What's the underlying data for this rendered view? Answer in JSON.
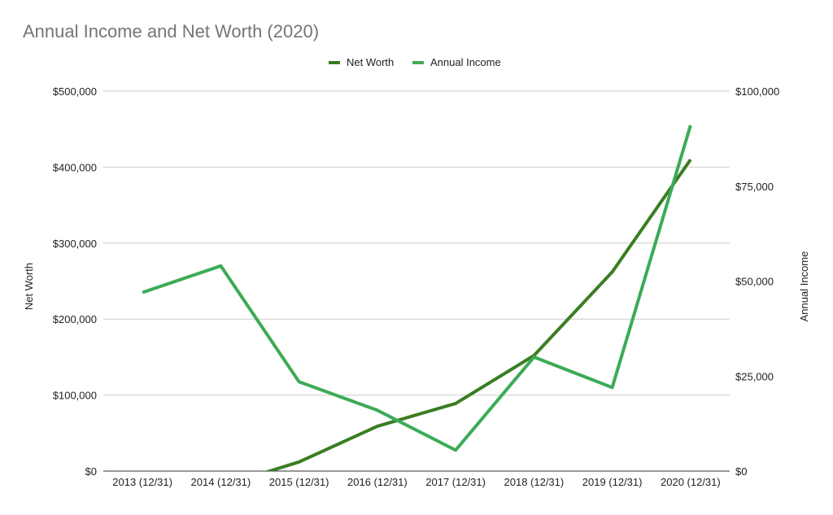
{
  "chart_data": {
    "type": "line",
    "title": "Annual Income and Net Worth (2020)",
    "categories": [
      "2013 (12/31)",
      "2014 (12/31)",
      "2015 (12/31)",
      "2016 (12/31)",
      "2017 (12/31)",
      "2018 (12/31)",
      "2019 (12/31)",
      "2020 (12/31)"
    ],
    "left_axis": {
      "label": "Net Worth",
      "ylim": [
        0,
        500000
      ],
      "ticks": [
        0,
        100000,
        200000,
        300000,
        400000,
        500000
      ],
      "tick_labels": [
        "$0",
        "$100,000",
        "$200,000",
        "$300,000",
        "$400,000",
        "$500,000"
      ]
    },
    "right_axis": {
      "label": "Annual Income",
      "ylim": [
        0,
        100000
      ],
      "ticks": [
        0,
        25000,
        50000,
        75000,
        100000
      ],
      "tick_labels": [
        "$0",
        "$25,000",
        "$50,000",
        "$75,000",
        "$100,000"
      ]
    },
    "series": [
      {
        "name": "Net Worth",
        "axis": "left",
        "color": "#3a7d22",
        "values": [
          -5000,
          -20000,
          12000,
          59000,
          89000,
          152000,
          262000,
          410000
        ]
      },
      {
        "name": "Annual Income",
        "axis": "right",
        "color": "#3cab56",
        "values": [
          47000,
          54000,
          23500,
          16000,
          5500,
          30000,
          22000,
          91000
        ]
      }
    ],
    "legend_position": "top-center",
    "grid": true
  }
}
